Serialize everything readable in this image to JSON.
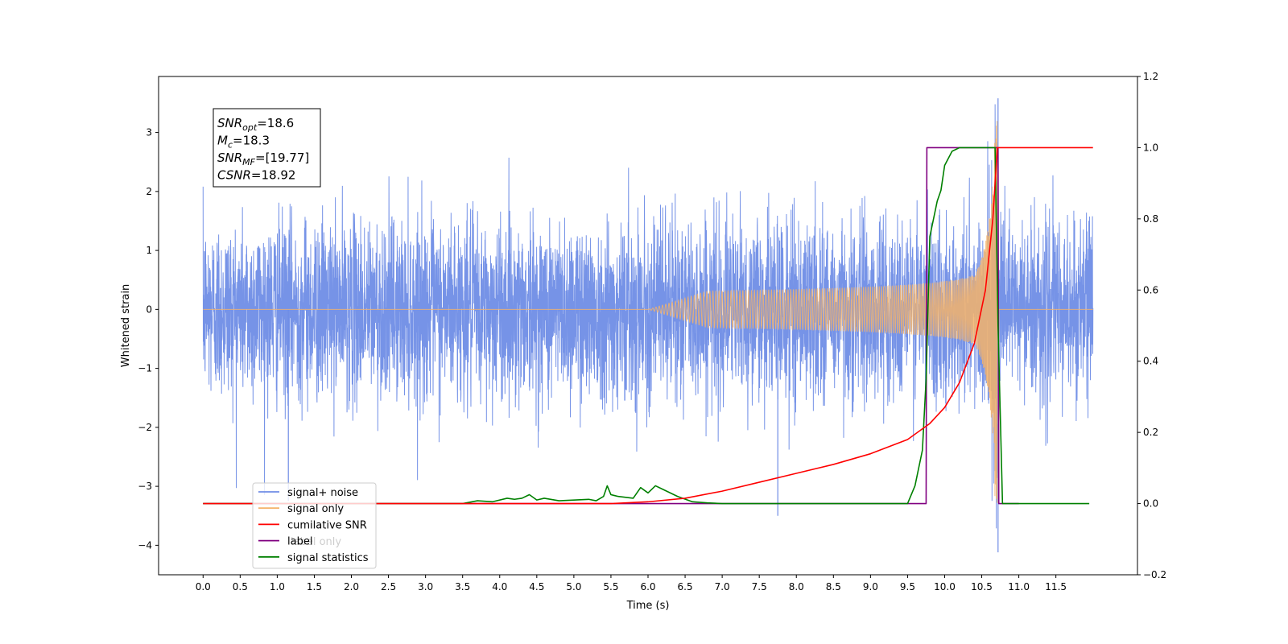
{
  "chart_data": {
    "type": "line",
    "xlabel": "Time (s)",
    "ylabel_left": "Whitened strain",
    "ylabel_right": "",
    "xlim": [
      -0.6,
      12.6
    ],
    "ylim_left": [
      -4.5,
      3.95
    ],
    "ylim_right": [
      -0.2,
      1.2
    ],
    "x_ticks": [
      "0.0",
      "0.5",
      "1.0",
      "1.5",
      "2.0",
      "2.5",
      "3.0",
      "3.5",
      "4.0",
      "4.5",
      "5.0",
      "5.5",
      "6.0",
      "6.5",
      "7.0",
      "7.5",
      "8.0",
      "8.5",
      "9.0",
      "9.5",
      "10.0",
      "10.5",
      "11.0",
      "11.5"
    ],
    "y_ticks_left": [
      "3",
      "2",
      "1",
      "0",
      "−1",
      "−2",
      "−3",
      "−4"
    ],
    "y_ticks_right": [
      "1.2",
      "1.0",
      "0.8",
      "0.6",
      "0.4",
      "0.2",
      "0.0",
      "−0.2"
    ],
    "grid": false,
    "legend_position": "lower-left",
    "series": [
      {
        "name": "signal+ noise",
        "axis": "left",
        "color": "#6f8de6",
        "description_values": {
          "t_start": 0.0,
          "t_end": 12.0,
          "noise_std": 0.75,
          "peak": 3.58,
          "trough": -4.12
        }
      },
      {
        "name": "signal only",
        "axis": "left",
        "color": "#f5b36a",
        "chirp": {
          "t_start": 6.0,
          "t_merger": 10.71,
          "peak_amplitude": 3.3
        }
      },
      {
        "name": "cumilative SNR",
        "axis": "right",
        "color": "#ff0000",
        "x": [
          0.0,
          5.0,
          5.5,
          6.0,
          6.5,
          7.0,
          7.5,
          8.0,
          8.5,
          9.0,
          9.5,
          9.8,
          10.0,
          10.2,
          10.4,
          10.55,
          10.65,
          10.71,
          10.75,
          11.0,
          11.5,
          12.0
        ],
        "y": [
          0.0,
          0.0,
          0.0,
          0.005,
          0.015,
          0.035,
          0.06,
          0.085,
          0.11,
          0.14,
          0.18,
          0.225,
          0.27,
          0.34,
          0.45,
          0.6,
          0.8,
          1.0,
          1.0,
          1.0,
          1.0,
          1.0
        ]
      },
      {
        "name": "label",
        "axis": "right",
        "color": "#800080",
        "x": [
          0.0,
          9.75,
          9.76,
          10.72,
          10.73,
          11.0
        ],
        "y": [
          0.0,
          0.0,
          1.0,
          1.0,
          0.0,
          0.0
        ]
      },
      {
        "name": "label only",
        "axis": "right",
        "color": "#800080",
        "hidden_behind_legend": true
      },
      {
        "name": "signal statistics",
        "axis": "right",
        "color": "#008000",
        "x": [
          0.0,
          3.5,
          3.7,
          3.9,
          4.1,
          4.2,
          4.3,
          4.4,
          4.5,
          4.6,
          4.8,
          5.0,
          5.2,
          5.3,
          5.4,
          5.45,
          5.5,
          5.6,
          5.8,
          5.9,
          6.0,
          6.1,
          6.2,
          6.4,
          6.6,
          6.8,
          7.0,
          9.5,
          9.6,
          9.7,
          9.75,
          9.8,
          9.85,
          9.9,
          9.95,
          10.0,
          10.1,
          10.2,
          10.5,
          10.68,
          10.72,
          10.78,
          11.0,
          11.95
        ],
        "y": [
          0.0,
          0.0,
          0.008,
          0.005,
          0.015,
          0.012,
          0.015,
          0.025,
          0.01,
          0.015,
          0.008,
          0.01,
          0.012,
          0.008,
          0.02,
          0.05,
          0.025,
          0.02,
          0.015,
          0.045,
          0.03,
          0.05,
          0.04,
          0.02,
          0.005,
          0.002,
          0.0,
          0.0,
          0.05,
          0.15,
          0.35,
          0.75,
          0.8,
          0.85,
          0.88,
          0.95,
          0.99,
          1.0,
          1.0,
          1.0,
          0.5,
          0.0,
          0.0,
          0.0
        ]
      }
    ],
    "annotation": {
      "lines": [
        {
          "main": "SNR",
          "sub": "opt",
          "value": "=18.6"
        },
        {
          "main": "M",
          "sub": "c",
          "value": "=18.3"
        },
        {
          "main": "SNR",
          "sub": "MF",
          "value": "=[19.77]"
        },
        {
          "main": "CSNR",
          "sub": "",
          "value": "=18.92"
        }
      ]
    },
    "legend_entries": [
      "signal+ noise",
      "signal only",
      "cumilative SNR",
      "label",
      "signal statistics"
    ]
  }
}
